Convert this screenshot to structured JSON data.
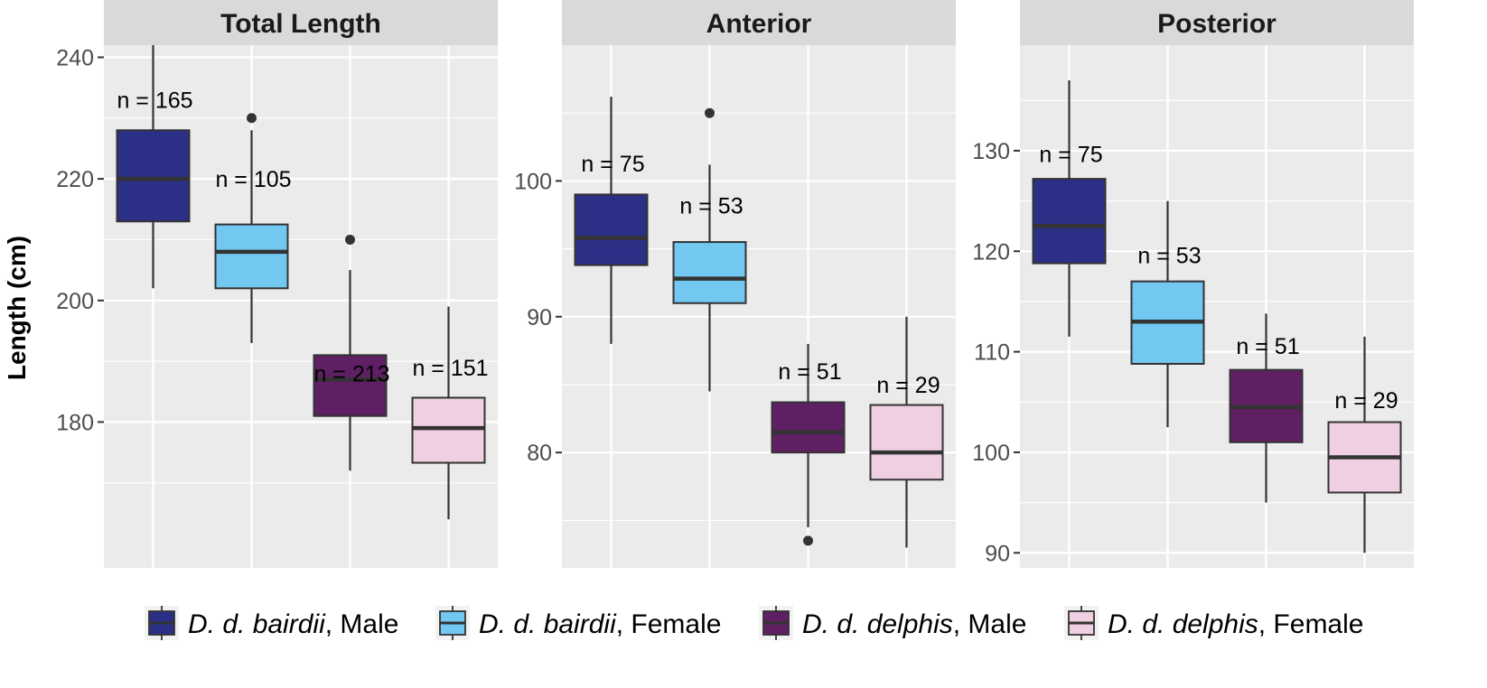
{
  "chart_data": {
    "type": "boxplot",
    "ylabel": "Length (cm)",
    "groups": [
      {
        "name": "D. d. bairdii, Male",
        "species": "D. d. bairdii",
        "sex": "Male",
        "color": "#2b2f86"
      },
      {
        "name": "D. d. bairdii, Female",
        "species": "D. d. bairdii",
        "sex": "Female",
        "color": "#72c8f0"
      },
      {
        "name": "D. d. delphis, Male",
        "species": "D. d. delphis",
        "sex": "Male",
        "color": "#5f1f63"
      },
      {
        "name": "D. d. delphis, Female",
        "species": "D. d. delphis",
        "sex": "Female",
        "color": "#f0cfe3"
      }
    ],
    "legend_position": "bottom",
    "grid": true,
    "panels": [
      {
        "title": "Total Length",
        "ylim": [
          156,
          242
        ],
        "major_ticks": [
          180,
          200,
          220,
          240
        ],
        "minor_ticks": [
          170,
          190,
          210,
          230
        ],
        "boxes": [
          {
            "min": 202,
            "q1": 213,
            "median": 220,
            "q3": 228,
            "max": 242,
            "outliers": [],
            "n_label": "n = 165",
            "label_y": 233
          },
          {
            "min": 193,
            "q1": 202,
            "median": 208,
            "q3": 212.5,
            "max": 228,
            "outliers": [
              230
            ],
            "n_label": "n = 105",
            "label_y": 220
          },
          {
            "min": 172,
            "q1": 181,
            "median": 187,
            "q3": 191,
            "max": 205,
            "outliers": [
              210
            ],
            "n_label": "n = 213",
            "label_y": 188
          },
          {
            "min": 164,
            "q1": 173.3,
            "median": 179,
            "q3": 184,
            "max": 199,
            "outliers": [],
            "n_label": "n = 151",
            "label_y": 189
          }
        ]
      },
      {
        "title": "Anterior",
        "ylim": [
          71.5,
          110
        ],
        "major_ticks": [
          80,
          90,
          100
        ],
        "minor_ticks": [
          75,
          85,
          95,
          105
        ],
        "boxes": [
          {
            "min": 88,
            "q1": 93.8,
            "median": 95.8,
            "q3": 99,
            "max": 106.2,
            "outliers": [],
            "n_label": "n = 75",
            "label_y": 101.3
          },
          {
            "min": 84.5,
            "q1": 91,
            "median": 92.8,
            "q3": 95.5,
            "max": 101.2,
            "outliers": [
              105
            ],
            "n_label": "n = 53",
            "label_y": 98.2
          },
          {
            "min": 74.5,
            "q1": 80,
            "median": 81.5,
            "q3": 83.7,
            "max": 88,
            "outliers": [
              73.5
            ],
            "n_label": "n = 51",
            "label_y": 86
          },
          {
            "min": 73,
            "q1": 78,
            "median": 80,
            "q3": 83.5,
            "max": 90,
            "outliers": [],
            "n_label": "n = 29",
            "label_y": 85
          }
        ]
      },
      {
        "title": "Posterior",
        "ylim": [
          88.5,
          140.5
        ],
        "major_ticks": [
          90,
          100,
          110,
          120,
          130
        ],
        "minor_ticks": [
          95,
          105,
          115,
          125,
          135
        ],
        "boxes": [
          {
            "min": 111.5,
            "q1": 118.8,
            "median": 122.5,
            "q3": 127.2,
            "max": 137,
            "outliers": [],
            "n_label": "n = 75",
            "label_y": 129.7
          },
          {
            "min": 102.5,
            "q1": 108.8,
            "median": 113,
            "q3": 117,
            "max": 125,
            "outliers": [],
            "n_label": "n = 53",
            "label_y": 119.6
          },
          {
            "min": 95,
            "q1": 101,
            "median": 104.5,
            "q3": 108.2,
            "max": 113.8,
            "outliers": [],
            "n_label": "n = 51",
            "label_y": 110.6
          },
          {
            "min": 90,
            "q1": 96,
            "median": 99.5,
            "q3": 103,
            "max": 111.5,
            "outliers": [],
            "n_label": "n = 29",
            "label_y": 105.2
          }
        ]
      }
    ]
  }
}
